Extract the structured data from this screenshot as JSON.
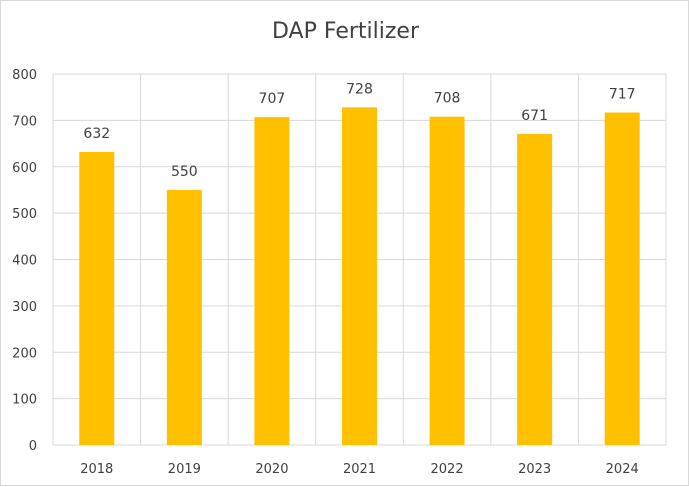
{
  "chart_data": {
    "type": "bar",
    "title": "DAP Fertilizer",
    "categories": [
      "2018",
      "2019",
      "2020",
      "2021",
      "2022",
      "2023",
      "2024"
    ],
    "values": [
      632,
      550,
      707,
      728,
      708,
      671,
      717
    ],
    "data_labels": [
      "632",
      "550",
      "707",
      "728",
      "708",
      "671",
      "717"
    ],
    "xlabel": "",
    "ylabel": "",
    "ylim": [
      0,
      800
    ],
    "yticks": [
      0,
      100,
      200,
      300,
      400,
      500,
      600,
      700,
      800
    ],
    "grid": true,
    "legend": "none",
    "colors": {
      "bar": "#FFC000",
      "grid": "#d9d9d9",
      "text": "#404040"
    }
  }
}
